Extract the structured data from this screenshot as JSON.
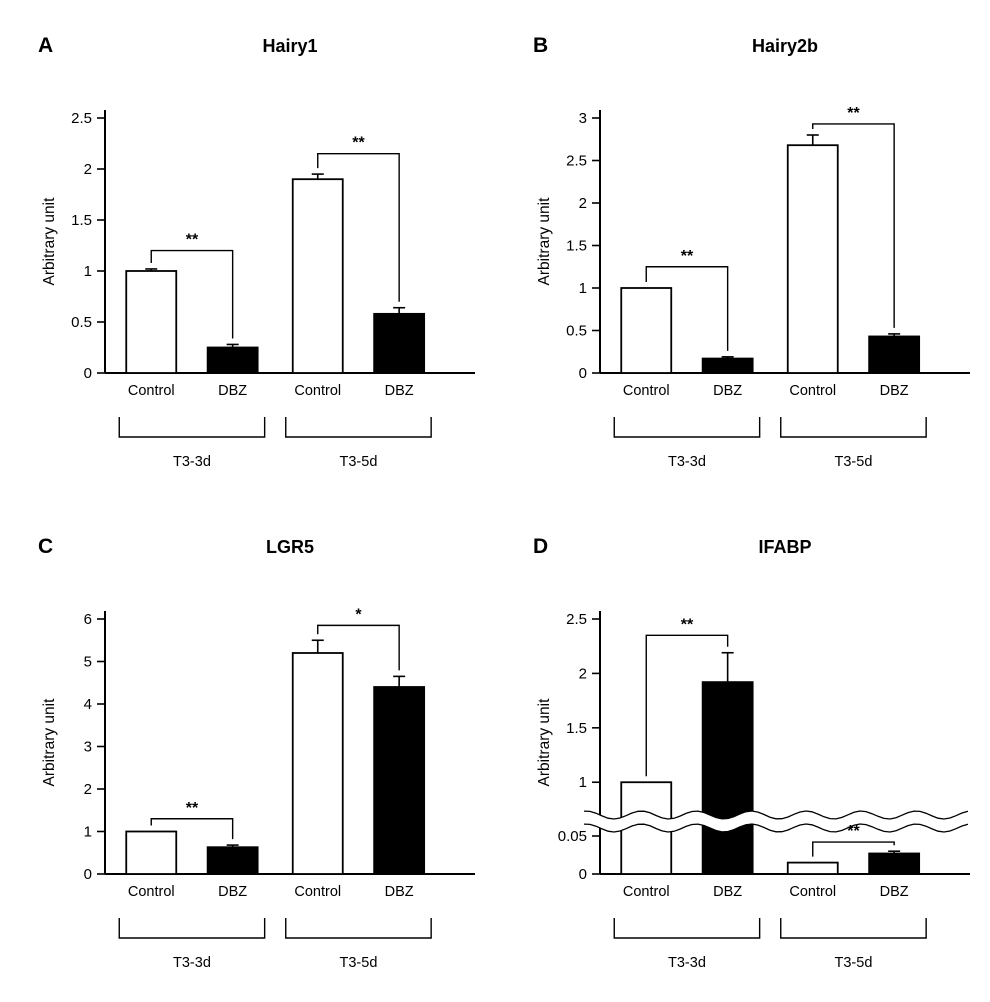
{
  "figure": {
    "background_color": "#ffffff",
    "bar_fill_legend": {
      "control": "#ffffff",
      "dbz": "#000000"
    }
  },
  "chart_data": [
    {
      "type": "bar",
      "panel_label": "A",
      "title": "Hairy1",
      "ylabel": "Arbitrary unit",
      "xlabel": "",
      "ylim": [
        0,
        2.5
      ],
      "yticks": [
        0,
        0.5,
        1,
        1.5,
        2,
        2.5
      ],
      "categories": [
        "Control",
        "DBZ",
        "Control",
        "DBZ"
      ],
      "groups": [
        {
          "label": "T3-3d",
          "bars": [
            0,
            1
          ]
        },
        {
          "label": "T3-5d",
          "bars": [
            2,
            3
          ]
        }
      ],
      "values": [
        1.0,
        0.25,
        1.9,
        0.58
      ],
      "errors": [
        0.02,
        0.03,
        0.05,
        0.06
      ],
      "bar_colors": [
        "#ffffff",
        "#000000",
        "#ffffff",
        "#000000"
      ],
      "significance": [
        {
          "bars": [
            0,
            1
          ],
          "label": "**",
          "height": 1.2
        },
        {
          "bars": [
            2,
            3
          ],
          "label": "**",
          "height": 2.15
        }
      ]
    },
    {
      "type": "bar",
      "panel_label": "B",
      "title": "Hairy2b",
      "ylabel": "Arbitrary unit",
      "xlabel": "",
      "ylim": [
        0,
        3
      ],
      "yticks": [
        0,
        0.5,
        1,
        1.5,
        2,
        2.5,
        3
      ],
      "categories": [
        "Control",
        "DBZ",
        "Control",
        "DBZ"
      ],
      "groups": [
        {
          "label": "T3-3d",
          "bars": [
            0,
            1
          ]
        },
        {
          "label": "T3-5d",
          "bars": [
            2,
            3
          ]
        }
      ],
      "values": [
        1.0,
        0.17,
        2.68,
        0.43
      ],
      "errors": [
        0,
        0.02,
        0.12,
        0.03
      ],
      "bar_colors": [
        "#ffffff",
        "#000000",
        "#ffffff",
        "#000000"
      ],
      "significance": [
        {
          "bars": [
            0,
            1
          ],
          "label": "**",
          "height": 1.25
        },
        {
          "bars": [
            2,
            3
          ],
          "label": "**",
          "height": 2.93
        }
      ]
    },
    {
      "type": "bar",
      "panel_label": "C",
      "title": "LGR5",
      "ylabel": "Arbitrary unit",
      "xlabel": "",
      "ylim": [
        0,
        6
      ],
      "yticks": [
        0,
        1,
        2,
        3,
        4,
        5,
        6
      ],
      "categories": [
        "Control",
        "DBZ",
        "Control",
        "DBZ"
      ],
      "groups": [
        {
          "label": "T3-3d",
          "bars": [
            0,
            1
          ]
        },
        {
          "label": "T3-5d",
          "bars": [
            2,
            3
          ]
        }
      ],
      "values": [
        1.0,
        0.63,
        5.2,
        4.4
      ],
      "errors": [
        0,
        0.05,
        0.3,
        0.25
      ],
      "bar_colors": [
        "#ffffff",
        "#000000",
        "#ffffff",
        "#000000"
      ],
      "significance": [
        {
          "bars": [
            0,
            1
          ],
          "label": "**",
          "height": 1.3
        },
        {
          "bars": [
            2,
            3
          ],
          "label": "*",
          "height": 5.85
        }
      ]
    },
    {
      "type": "bar",
      "panel_label": "D",
      "title": "IFABP",
      "ylabel": "Arbitrary unit",
      "xlabel": "",
      "ylim": [
        0,
        2.5
      ],
      "axis_break": {
        "lower_max": 0.05,
        "upper_min": 0.8
      },
      "yticks_lower": [
        0,
        0.05
      ],
      "yticks_upper": [
        1,
        1.5,
        2,
        2.5
      ],
      "categories": [
        "Control",
        "DBZ",
        "Control",
        "DBZ"
      ],
      "groups": [
        {
          "label": "T3-3d",
          "bars": [
            0,
            1
          ]
        },
        {
          "label": "T3-5d",
          "bars": [
            2,
            3
          ]
        }
      ],
      "values": [
        1.0,
        1.92,
        0.015,
        0.027
      ],
      "errors": [
        0,
        0.27,
        0,
        0.003
      ],
      "bar_colors": [
        "#ffffff",
        "#000000",
        "#ffffff",
        "#000000"
      ],
      "significance": [
        {
          "bars": [
            0,
            1
          ],
          "label": "**",
          "height": 2.35
        },
        {
          "bars": [
            2,
            3
          ],
          "label": "**",
          "height": 0.042
        }
      ]
    }
  ]
}
